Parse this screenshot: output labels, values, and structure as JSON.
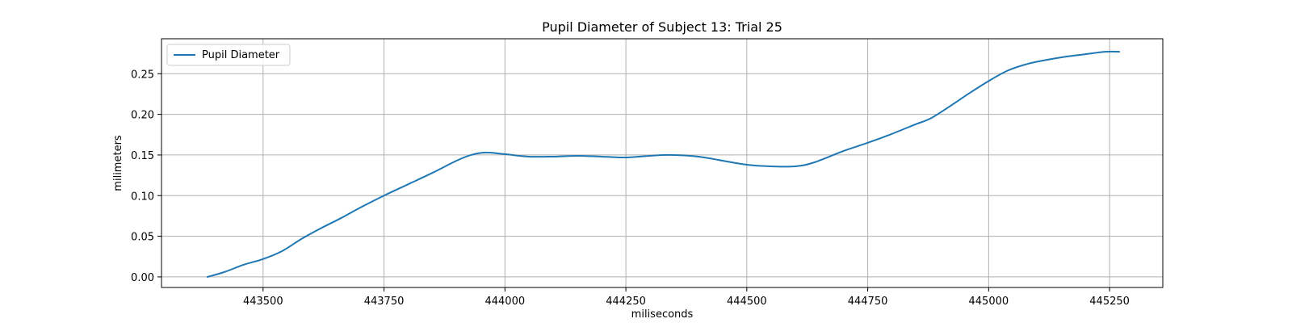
{
  "chart_data": {
    "type": "line",
    "title": "Pupil Diameter of Subject 13: Trial 25",
    "xlabel": "miliseconds",
    "ylabel": "milimeters",
    "xlim": [
      443290,
      445360
    ],
    "ylim": [
      -0.013,
      0.293
    ],
    "xticks": [
      443500,
      443750,
      444000,
      444250,
      444500,
      444750,
      445000,
      445250
    ],
    "yticks": [
      0.0,
      0.05,
      0.1,
      0.15,
      0.2,
      0.25
    ],
    "xtick_labels": [
      "443500",
      "443750",
      "444000",
      "444250",
      "444500",
      "444750",
      "445000",
      "445250"
    ],
    "ytick_labels": [
      "0.00",
      "0.05",
      "0.10",
      "0.15",
      "0.20",
      "0.25"
    ],
    "grid": true,
    "legend_position": "upper-left",
    "series": [
      {
        "name": "Pupil Diameter",
        "color": "#1f77b4",
        "x": [
          443385,
          443420,
          443460,
          443500,
          443540,
          443580,
          443620,
          443660,
          443700,
          443750,
          443800,
          443850,
          443900,
          443930,
          443960,
          444000,
          444050,
          444100,
          444150,
          444200,
          444250,
          444300,
          444340,
          444400,
          444450,
          444500,
          444550,
          444600,
          444640,
          444700,
          444750,
          444800,
          444850,
          444880,
          444920,
          444960,
          445000,
          445040,
          445080,
          445120,
          445160,
          445200,
          445240,
          445270
        ],
        "y": [
          0.0,
          0.006,
          0.015,
          0.022,
          0.032,
          0.047,
          0.06,
          0.072,
          0.085,
          0.1,
          0.114,
          0.128,
          0.143,
          0.15,
          0.153,
          0.151,
          0.148,
          0.148,
          0.149,
          0.148,
          0.147,
          0.149,
          0.15,
          0.148,
          0.143,
          0.138,
          0.136,
          0.136,
          0.141,
          0.155,
          0.165,
          0.176,
          0.188,
          0.195,
          0.21,
          0.226,
          0.241,
          0.254,
          0.262,
          0.267,
          0.271,
          0.274,
          0.277,
          0.277
        ]
      }
    ]
  }
}
